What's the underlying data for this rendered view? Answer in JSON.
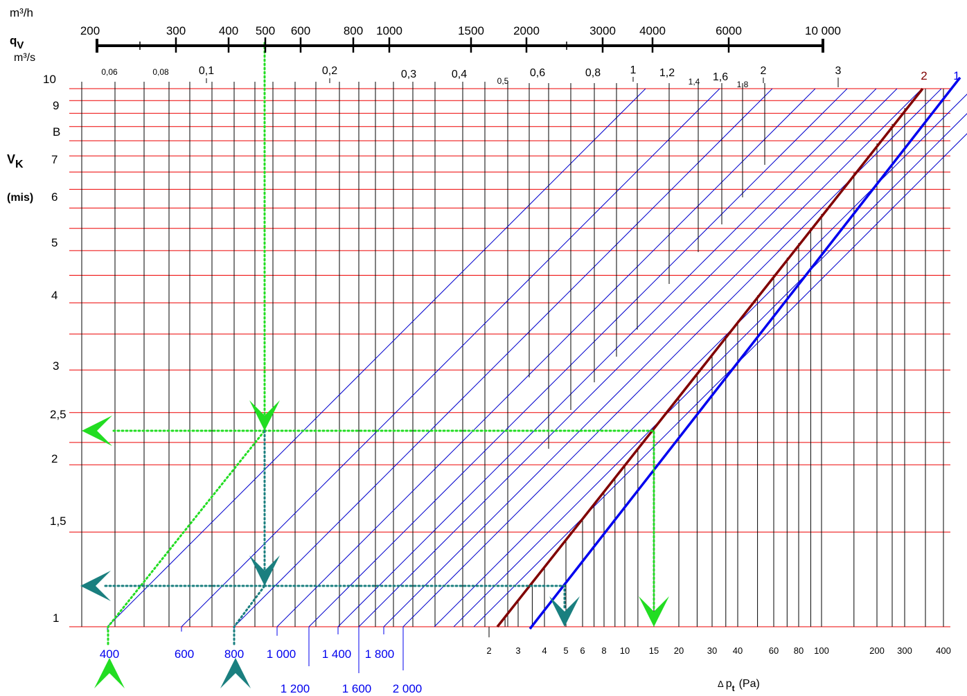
{
  "chart_data": {
    "type": "line",
    "title": "",
    "units": {
      "qv_h": "m³/h",
      "qv_s_symbol": "q",
      "qv_s_sub": "V",
      "qv_s": "m³/s",
      "vk_symbol": "V",
      "vk_sub": "K",
      "vk_unit": "(mis)",
      "dp_delta": "Δ",
      "dp_symbol": "p",
      "dp_sub": "t",
      "dp_unit": "(Pa)"
    },
    "top_axis_m3h": {
      "range": [
        200,
        10000
      ],
      "labels": [
        "200",
        "300",
        "400",
        "500",
        "600",
        "800",
        "1000",
        "1500",
        "2000",
        "3000",
        "4000",
        "6000",
        "10 000"
      ],
      "values": [
        200,
        300,
        400,
        500,
        600,
        800,
        1000,
        1500,
        2000,
        3000,
        4000,
        6000,
        10000
      ]
    },
    "flow_axis_m3s": {
      "labels": [
        "0,06",
        "0,08",
        "0,1",
        "0,2",
        "0,3",
        "0,4",
        "0,5",
        "0,6",
        "0,8",
        "1",
        "1,2",
        "1,4",
        "1,6",
        "1,8",
        "2",
        "3"
      ],
      "values": [
        0.06,
        0.08,
        0.1,
        0.2,
        0.3,
        0.4,
        0.5,
        0.6,
        0.8,
        1,
        1.2,
        1.4,
        1.6,
        1.8,
        2,
        3
      ]
    },
    "velocity_axis_ms": {
      "range": [
        1,
        10
      ],
      "labels": [
        "10",
        "9",
        "B",
        "7",
        "6",
        "5",
        "4",
        "3",
        "2,5",
        "2",
        "1,5",
        "1"
      ],
      "values": [
        10,
        9,
        8,
        7,
        6,
        5,
        4,
        3,
        2.5,
        2,
        1.5,
        1
      ]
    },
    "diameters_mm": {
      "labels": [
        "400",
        "600",
        "800",
        "1 000",
        "1 200",
        "1 400",
        "1 600",
        "1 800",
        "2 000"
      ],
      "values": [
        400,
        600,
        800,
        1000,
        1200,
        1400,
        1600,
        1800,
        2000
      ]
    },
    "pressure_axis_pa": {
      "labels": [
        "2",
        "3",
        "4",
        "5",
        "6",
        "8",
        "10",
        "15",
        "20",
        "30",
        "40",
        "60",
        "80",
        "100",
        "200",
        "300",
        "400"
      ],
      "values": [
        2,
        3,
        4,
        5,
        6,
        8,
        10,
        15,
        20,
        30,
        40,
        60,
        80,
        100,
        200,
        300,
        400
      ]
    },
    "loss_curves": {
      "labels": [
        "2",
        "1"
      ],
      "colors": [
        "#800000",
        "#0000ee"
      ]
    },
    "examples": [
      {
        "color": "#22dd22",
        "diameter": 400,
        "flow_m3h": 500,
        "velocity": 2.4,
        "pressure": 15
      },
      {
        "color": "#1a7f7f",
        "diameter": 800,
        "flow_m3h": 500,
        "velocity": 1.2,
        "pressure": 5
      }
    ],
    "colors": {
      "grid_h": "#ee0000",
      "grid_v": "#000000",
      "diameter_lines": "#0000cc",
      "diameter_labels": "#0000ee",
      "example_green": "#22dd22",
      "example_teal": "#1a7f7f"
    },
    "grid": true,
    "legend": "none"
  }
}
